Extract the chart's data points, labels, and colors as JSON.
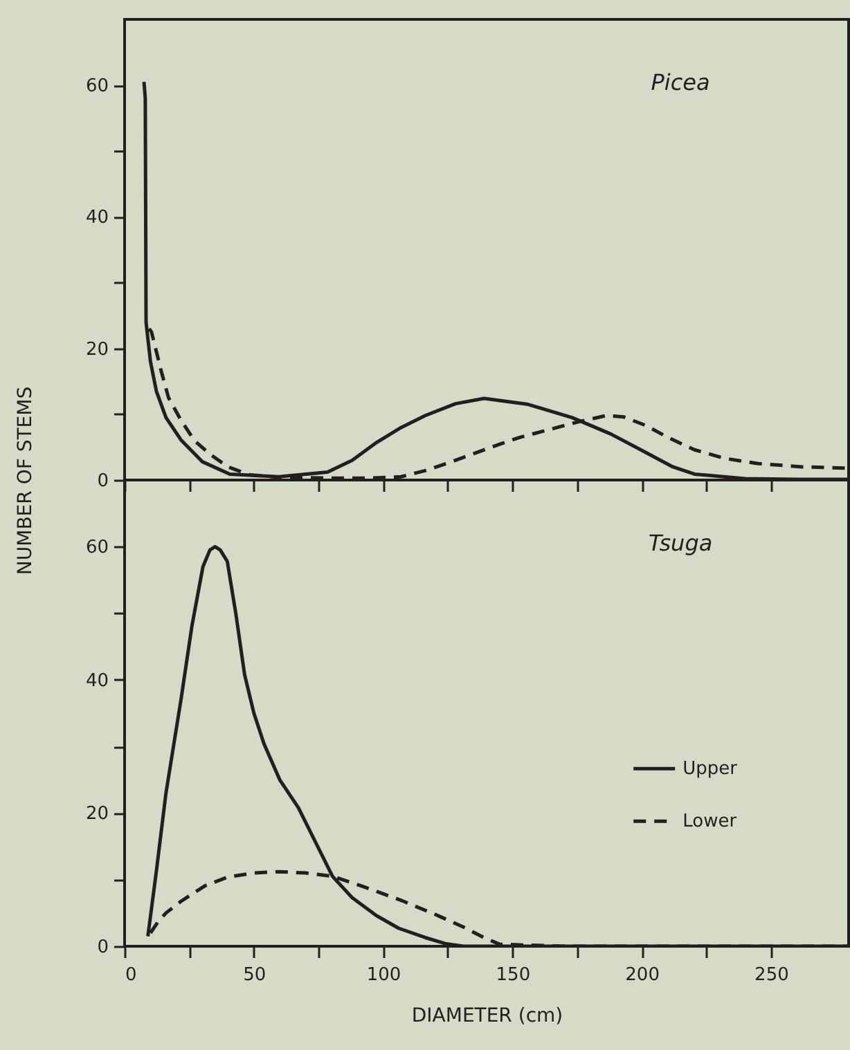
{
  "chart_data": [
    {
      "type": "line",
      "title": "Picea",
      "ylabel": "NUMBER OF STEMS",
      "xlim": [
        0,
        280
      ],
      "ylim": [
        0,
        70
      ],
      "xticks": [
        0,
        {
          "value": 25,
          "label": null
        },
        50,
        {
          "value": 75,
          "label": null
        },
        100,
        {
          "value": 125,
          "label": null
        },
        150,
        {
          "value": 175,
          "label": null
        },
        200,
        {
          "value": 225,
          "label": null
        },
        250
      ],
      "yticks": [
        0,
        {
          "value": 10,
          "label": null
        },
        20,
        {
          "value": 30,
          "label": null
        },
        40,
        {
          "value": 50,
          "label": null
        },
        60
      ],
      "tick_labels": "y",
      "legend": false,
      "grid": false,
      "series": [
        {
          "color": "#231f20",
          "line_style": "solid",
          "x": [
            7.5,
            8,
            8.3,
            10,
            12.3,
            16,
            21.8,
            30,
            40.7,
            59.6,
            78.5,
            88,
            97.4,
            107,
            116.3,
            128,
            139,
            156,
            173,
            188,
            201.5,
            212,
            220.4,
            240,
            260,
            280
          ],
          "values": [
            60.5,
            58,
            24,
            18,
            13.5,
            9.5,
            6.1,
            2.8,
            0.9,
            0.5,
            1.2,
            3,
            5.7,
            8,
            9.8,
            11.6,
            12.4,
            11.5,
            9.5,
            7,
            4.2,
            2,
            0.9,
            0.2,
            0.1,
            0.1
          ]
        },
        {
          "color": "#231f20",
          "line_style": "dashed",
          "x": [
            9.5,
            10.4,
            14.2,
            17,
            21.8,
            27,
            33.1,
            40,
            48.3,
            60,
            78.5,
            95,
            106.9,
            116,
            125.8,
            135,
            144.7,
            153,
            163.6,
            175,
            186.3,
            193,
            201.5,
            210,
            220.4,
            232,
            245,
            262,
            280
          ],
          "values": [
            23,
            22.5,
            16.5,
            12.5,
            9.1,
            6,
            3.9,
            2,
            0.8,
            0.4,
            0.3,
            0.3,
            0.5,
            1.4,
            2.7,
            4,
            5.4,
            6.5,
            7.6,
            8.8,
            9.8,
            9.6,
            8.3,
            6.5,
            4.6,
            3.3,
            2.5,
            2,
            1.8
          ]
        }
      ]
    },
    {
      "type": "line",
      "title": "Tsuga",
      "xlabel": "DIAMETER (cm)",
      "xlim": [
        0,
        280
      ],
      "ylim": [
        0,
        70
      ],
      "xticks": [
        0,
        {
          "value": 25,
          "label": null
        },
        50,
        {
          "value": 75,
          "label": null
        },
        100,
        {
          "value": 125,
          "label": null
        },
        150,
        {
          "value": 175,
          "label": null
        },
        200,
        {
          "value": 225,
          "label": null
        },
        250
      ],
      "yticks": [
        0,
        {
          "value": 10,
          "label": null
        },
        20,
        {
          "value": 30,
          "label": null
        },
        40,
        {
          "value": 50,
          "label": null
        },
        60
      ],
      "legend": "bottom right",
      "grid": false,
      "series": [
        {
          "name": "Upper",
          "color": "#231f20",
          "line_style": "solid",
          "x": [
            9,
            12.3,
            16,
            21.8,
            26,
            30.3,
            33,
            35,
            37,
            39.7,
            43,
            46.4,
            50,
            53.9,
            60,
            67.2,
            74,
            80.4,
            88,
            97.4,
            106,
            116.3,
            124,
            131,
            160,
            200,
            240,
            280
          ],
          "values": [
            1.5,
            11.3,
            23,
            37,
            48,
            57,
            59.5,
            60,
            59.5,
            57.8,
            50,
            40.8,
            35,
            30.4,
            25,
            20.8,
            15.5,
            10.5,
            7.3,
            4.6,
            2.7,
            1.3,
            0.4,
            0,
            0,
            0,
            0,
            0
          ]
        },
        {
          "name": "Lower",
          "color": "#231f20",
          "line_style": "dashed",
          "x": [
            10,
            13,
            16,
            22,
            31.2,
            40,
            50,
            59.6,
            70,
            80.4,
            92,
            106.9,
            120,
            131.5,
            139,
            145,
            170,
            200,
            240,
            280
          ],
          "values": [
            2,
            3.7,
            5,
            6.8,
            9.1,
            10.4,
            11,
            11.2,
            11,
            10.5,
            9,
            6.9,
            4.8,
            2.8,
            1.3,
            0.3,
            0,
            0,
            0,
            0
          ]
        }
      ]
    }
  ]
}
